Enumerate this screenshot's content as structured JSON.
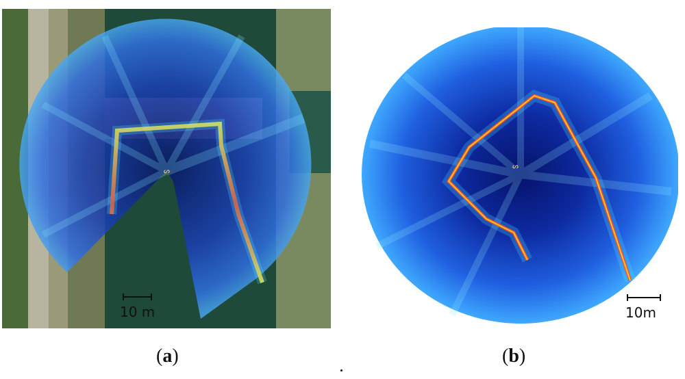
{
  "panel_a": {
    "scale_label": "10 m",
    "caption": {
      "open": "(",
      "letter": "a",
      "close": ")"
    }
  },
  "panel_b": {
    "scale_label": "10m",
    "caption": {
      "open": "(",
      "letter": "b",
      "close": ")"
    }
  },
  "colors": {
    "sonar_deep": "#0a1a8a",
    "sonar_mid": "#1f5fe0",
    "sonar_light": "#3fb6ff",
    "echo_hot": "#ff3a10",
    "echo_warm": "#ffe030",
    "water": "#1f4a3a",
    "bank": "#8c9270"
  }
}
